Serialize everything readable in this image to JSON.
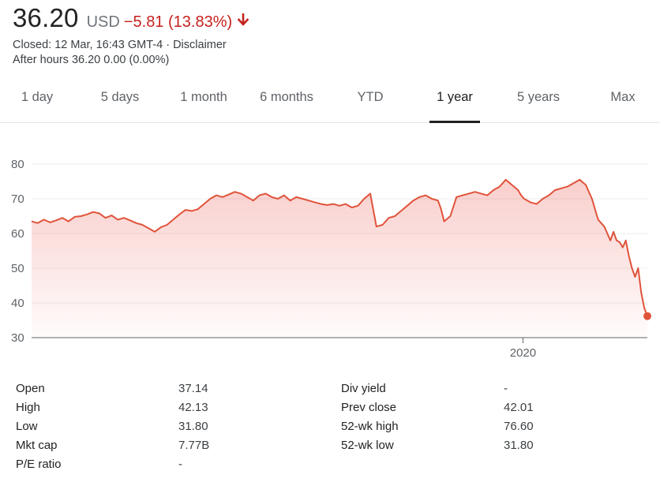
{
  "quote": {
    "price": "36.20",
    "currency": "USD",
    "change": "−5.81 (13.83%)",
    "direction": "down",
    "closed_text": "Closed: 12 Mar, 16:43 GMT-4 · Disclaimer",
    "after_hours_text": "After hours 36.20 0.00 (0.00%)",
    "colors": {
      "down": "#c5221f",
      "line": "#e0533a"
    }
  },
  "tabs": [
    {
      "label": "1 day"
    },
    {
      "label": "5 days"
    },
    {
      "label": "1 month"
    },
    {
      "label": "6 months"
    },
    {
      "label": "YTD"
    },
    {
      "label": "1 year",
      "active": true
    },
    {
      "label": "5 years"
    },
    {
      "label": "Max"
    }
  ],
  "chart_data": {
    "type": "area",
    "title": "",
    "xlabel": "",
    "ylabel": "",
    "ylim": [
      30,
      80
    ],
    "yticks": [
      30,
      40,
      50,
      60,
      70,
      80
    ],
    "xtick_labels": [
      {
        "label": "2020",
        "x": 0.798
      }
    ],
    "grid": true,
    "x_range": [
      0,
      1
    ],
    "x": [
      0,
      0.01,
      0.02,
      0.03,
      0.04,
      0.05,
      0.06,
      0.07,
      0.08,
      0.09,
      0.1,
      0.11,
      0.12,
      0.13,
      0.14,
      0.15,
      0.16,
      0.17,
      0.18,
      0.19,
      0.2,
      0.21,
      0.22,
      0.23,
      0.24,
      0.25,
      0.26,
      0.27,
      0.28,
      0.29,
      0.3,
      0.31,
      0.32,
      0.33,
      0.34,
      0.35,
      0.36,
      0.37,
      0.38,
      0.39,
      0.4,
      0.41,
      0.42,
      0.43,
      0.44,
      0.45,
      0.46,
      0.47,
      0.48,
      0.49,
      0.5,
      0.51,
      0.52,
      0.53,
      0.54,
      0.55,
      0.56,
      0.57,
      0.58,
      0.59,
      0.6,
      0.61,
      0.62,
      0.63,
      0.64,
      0.65,
      0.66,
      0.665,
      0.67,
      0.68,
      0.69,
      0.7,
      0.71,
      0.72,
      0.73,
      0.74,
      0.75,
      0.76,
      0.77,
      0.78,
      0.79,
      0.795,
      0.8,
      0.81,
      0.82,
      0.83,
      0.84,
      0.85,
      0.86,
      0.87,
      0.88,
      0.89,
      0.9,
      0.91,
      0.92,
      0.93,
      0.935,
      0.94,
      0.945,
      0.95,
      0.955,
      0.96,
      0.965,
      0.97,
      0.975,
      0.98,
      0.985,
      0.99,
      0.995,
      1.0
    ],
    "series": [
      {
        "values": [
          63.5,
          63.0,
          64.0,
          63.2,
          63.8,
          64.5,
          63.5,
          64.8,
          65.0,
          65.5,
          66.2,
          65.8,
          64.5,
          65.2,
          64.0,
          64.5,
          63.8,
          63.0,
          62.5,
          61.5,
          60.5,
          61.8,
          62.5,
          64.0,
          65.5,
          66.8,
          66.5,
          67.0,
          68.5,
          70.0,
          71.0,
          70.5,
          71.2,
          72.0,
          71.5,
          70.5,
          69.5,
          71.0,
          71.5,
          70.5,
          70.0,
          71.0,
          69.5,
          70.5,
          70.0,
          69.5,
          69.0,
          68.5,
          68.2,
          68.5,
          68.0,
          68.5,
          67.5,
          68.0,
          70.0,
          71.5,
          62.0,
          62.5,
          64.5,
          65.0,
          66.5,
          68.0,
          69.5,
          70.5,
          71.0,
          70.0,
          69.5,
          67.0,
          63.5,
          65.0,
          70.5,
          71.0,
          71.5,
          72.0,
          71.5,
          71.0,
          72.5,
          73.5,
          75.5,
          74.0,
          72.5,
          71.0,
          70.0,
          69.0,
          68.5,
          70.0,
          71.0,
          72.5,
          73.0,
          73.5,
          74.5,
          75.5,
          74.0,
          70.0,
          64.0,
          62.0,
          60.0,
          58.0,
          60.5,
          58.0,
          57.5,
          56.0,
          58.0,
          53.5,
          50.0,
          47.5,
          50.0,
          43.0,
          38.5,
          36.2
        ]
      }
    ]
  },
  "stats_left": [
    {
      "label": "Open",
      "value": "37.14"
    },
    {
      "label": "High",
      "value": "42.13"
    },
    {
      "label": "Low",
      "value": "31.80"
    },
    {
      "label": "Mkt cap",
      "value": "7.77B"
    },
    {
      "label": "P/E ratio",
      "value": "-"
    }
  ],
  "stats_right": [
    {
      "label": "Div yield",
      "value": "-"
    },
    {
      "label": "Prev close",
      "value": "42.01"
    },
    {
      "label": "52-wk high",
      "value": "76.60"
    },
    {
      "label": "52-wk low",
      "value": "31.80"
    }
  ]
}
